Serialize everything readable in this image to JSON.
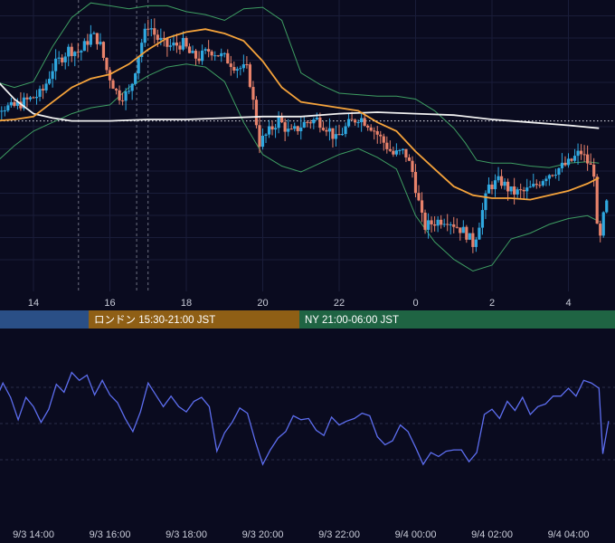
{
  "chart_data": [
    {
      "type": "candlestick",
      "panel": "price",
      "x_unit": "hour",
      "x_ticks": [
        "14",
        "16",
        "18",
        "20",
        "22",
        "0",
        "2",
        "4"
      ],
      "ylim": [
        0,
        100
      ],
      "grid": true,
      "reference_line_y": 58.5,
      "colors": {
        "up": "#2fa8e0",
        "down": "#e8826b",
        "ma_mid": "#f5a33b",
        "ma_long": "#f0f0f0",
        "band": "#3e9e62"
      },
      "ma_long": [
        [
          12.5,
          78
        ],
        [
          13,
          73
        ],
        [
          13.5,
          66
        ],
        [
          14,
          61
        ],
        [
          14.5,
          59.5
        ],
        [
          15,
          58.5
        ],
        [
          16,
          58.5
        ],
        [
          17,
          59
        ],
        [
          18,
          59
        ],
        [
          19,
          59.5
        ],
        [
          20,
          60
        ],
        [
          21,
          60
        ],
        [
          22,
          61
        ],
        [
          23,
          61.5
        ],
        [
          0,
          61
        ],
        [
          1,
          60.5
        ],
        [
          2,
          59
        ],
        [
          3,
          58
        ],
        [
          4,
          57
        ],
        [
          4.8,
          56
        ]
      ],
      "ma_mid": [
        [
          12.5,
          58
        ],
        [
          13.5,
          59
        ],
        [
          14,
          60
        ],
        [
          14.5,
          65
        ],
        [
          15,
          70
        ],
        [
          15.5,
          73
        ],
        [
          16,
          74.5
        ],
        [
          16.5,
          78
        ],
        [
          17,
          83
        ],
        [
          17.5,
          87
        ],
        [
          18,
          89
        ],
        [
          18.5,
          90
        ],
        [
          19,
          88.5
        ],
        [
          19.5,
          86
        ],
        [
          20,
          79
        ],
        [
          20.5,
          70
        ],
        [
          21,
          65
        ],
        [
          21.5,
          64
        ],
        [
          22,
          63
        ],
        [
          22.5,
          62
        ],
        [
          23,
          58
        ],
        [
          23.5,
          55
        ],
        [
          0,
          48
        ],
        [
          0.5,
          42
        ],
        [
          1,
          36
        ],
        [
          1.5,
          33
        ],
        [
          2,
          32
        ],
        [
          2.5,
          32
        ],
        [
          3,
          31.5
        ],
        [
          3.5,
          33
        ],
        [
          4,
          34.5
        ],
        [
          4.5,
          37
        ],
        [
          4.8,
          39
        ]
      ],
      "band_upper": [
        [
          12.5,
          76
        ],
        [
          13,
          72
        ],
        [
          13.5,
          70
        ],
        [
          14,
          72
        ],
        [
          14.5,
          84
        ],
        [
          15,
          94
        ],
        [
          15.5,
          99
        ],
        [
          16,
          98
        ],
        [
          16.5,
          97
        ],
        [
          17,
          98
        ],
        [
          17.5,
          98
        ],
        [
          18,
          96
        ],
        [
          18.5,
          95
        ],
        [
          19,
          93
        ],
        [
          19.5,
          97
        ],
        [
          20,
          97.5
        ],
        [
          20.5,
          93
        ],
        [
          21,
          75
        ],
        [
          21.5,
          71
        ],
        [
          22,
          68
        ],
        [
          23,
          67
        ],
        [
          23.5,
          67
        ],
        [
          0,
          66
        ],
        [
          0.5,
          62
        ],
        [
          1,
          56
        ],
        [
          1.3,
          51
        ],
        [
          1.6,
          45
        ],
        [
          2,
          44
        ],
        [
          2.5,
          44
        ],
        [
          3,
          43
        ],
        [
          3.5,
          42.5
        ],
        [
          4,
          44
        ],
        [
          4.5,
          44.5
        ],
        [
          4.8,
          44
        ]
      ],
      "band_lower": [
        [
          12.5,
          42
        ],
        [
          13,
          44
        ],
        [
          13.5,
          50
        ],
        [
          14,
          55
        ],
        [
          14.5,
          58
        ],
        [
          15,
          61
        ],
        [
          15.5,
          63
        ],
        [
          16,
          64
        ],
        [
          16.5,
          70
        ],
        [
          17,
          74
        ],
        [
          17.5,
          77
        ],
        [
          18,
          78
        ],
        [
          18.5,
          77
        ],
        [
          19,
          72
        ],
        [
          19.5,
          58
        ],
        [
          20,
          47
        ],
        [
          20.5,
          43
        ],
        [
          21,
          41
        ],
        [
          21.5,
          44
        ],
        [
          22,
          47
        ],
        [
          22.5,
          49
        ],
        [
          23,
          46
        ],
        [
          23.5,
          42
        ],
        [
          0,
          26
        ],
        [
          0.5,
          17
        ],
        [
          1,
          11
        ],
        [
          1.5,
          7
        ],
        [
          2,
          9
        ],
        [
          2.5,
          18
        ],
        [
          3,
          20
        ],
        [
          3.5,
          23
        ],
        [
          4,
          25
        ],
        [
          4.5,
          26
        ],
        [
          4.8,
          24
        ]
      ],
      "price_path": [
        [
          12.5,
          65
        ],
        [
          13,
          64
        ],
        [
          13.5,
          63
        ],
        [
          14,
          66
        ],
        [
          14.3,
          68
        ],
        [
          14.6,
          77
        ],
        [
          15,
          83
        ],
        [
          15.3,
          82
        ],
        [
          15.6,
          88
        ],
        [
          15.8,
          86
        ],
        [
          16,
          76
        ],
        [
          16.3,
          67
        ],
        [
          16.6,
          68
        ],
        [
          16.9,
          85
        ],
        [
          17.1,
          92
        ],
        [
          17.3,
          87
        ],
        [
          17.6,
          84
        ],
        [
          18,
          85
        ],
        [
          18.2,
          81
        ],
        [
          18.4,
          80
        ],
        [
          18.7,
          83
        ],
        [
          19.1,
          80
        ],
        [
          19.4,
          77
        ],
        [
          19.7,
          76
        ],
        [
          20,
          51
        ],
        [
          20.2,
          54
        ],
        [
          20.5,
          59
        ],
        [
          20.8,
          54
        ],
        [
          21.2,
          58
        ],
        [
          21.5,
          59
        ],
        [
          21.8,
          56
        ],
        [
          22,
          52
        ],
        [
          22.3,
          57
        ],
        [
          22.6,
          60
        ],
        [
          22.9,
          57
        ],
        [
          23.2,
          52
        ],
        [
          23.5,
          47
        ],
        [
          23.8,
          48
        ],
        [
          0,
          41
        ],
        [
          0.3,
          22
        ],
        [
          0.6,
          24
        ],
        [
          0.9,
          25
        ],
        [
          1.2,
          22
        ],
        [
          1.4,
          20
        ],
        [
          1.6,
          16
        ],
        [
          1.8,
          26
        ],
        [
          2,
          36
        ],
        [
          2.3,
          38
        ],
        [
          2.6,
          34
        ],
        [
          2.9,
          34
        ],
        [
          3.2,
          36
        ],
        [
          3.5,
          40
        ],
        [
          3.8,
          42
        ],
        [
          4.1,
          44
        ],
        [
          4.4,
          48
        ],
        [
          4.6,
          44
        ],
        [
          4.8,
          40
        ],
        [
          4.85,
          12
        ],
        [
          5.05,
          30
        ]
      ]
    },
    {
      "type": "bar",
      "panel": "sessions",
      "series": [
        {
          "name": "",
          "label": "",
          "color": "#2a4f86"
        },
        {
          "name": "ロンドン",
          "label": "ロンドン 15:30-21:00 JST",
          "color": "#8f5f15"
        },
        {
          "name": "NY",
          "label": "NY 21:00-06:00 JST",
          "color": "#1f6443"
        }
      ]
    },
    {
      "type": "line",
      "panel": "oscillator",
      "x_ticks": [
        "9/3 14:00",
        "9/3 16:00",
        "9/3 18:00",
        "9/3 20:00",
        "9/3 22:00",
        "9/4 00:00",
        "9/4 02:00",
        "9/4 04:00"
      ],
      "ylim": [
        0,
        100
      ],
      "grid": true,
      "color": "#5d6ef0",
      "series": [
        {
          "name": "",
          "path": [
            [
              12.5,
              85
            ],
            [
              12.8,
              80
            ],
            [
              13,
              70
            ],
            [
              13.2,
              84
            ],
            [
              13.4,
              73
            ],
            [
              13.6,
              56
            ],
            [
              13.8,
              73
            ],
            [
              14,
              66
            ],
            [
              14.2,
              54
            ],
            [
              14.4,
              64
            ],
            [
              14.6,
              83
            ],
            [
              14.8,
              77
            ],
            [
              15,
              92
            ],
            [
              15.2,
              86
            ],
            [
              15.4,
              90
            ],
            [
              15.6,
              75
            ],
            [
              15.8,
              86
            ],
            [
              16,
              75
            ],
            [
              16.2,
              69
            ],
            [
              16.4,
              57
            ],
            [
              16.6,
              47
            ],
            [
              16.8,
              62
            ],
            [
              17,
              84
            ],
            [
              17.2,
              75
            ],
            [
              17.4,
              66
            ],
            [
              17.6,
              74
            ],
            [
              17.8,
              66
            ],
            [
              18,
              62
            ],
            [
              18.2,
              70
            ],
            [
              18.4,
              73
            ],
            [
              18.6,
              66
            ],
            [
              18.8,
              32
            ],
            [
              19,
              46
            ],
            [
              19.2,
              54
            ],
            [
              19.4,
              65
            ],
            [
              19.6,
              61
            ],
            [
              19.8,
              40
            ],
            [
              20,
              22
            ],
            [
              20.2,
              33
            ],
            [
              20.4,
              42
            ],
            [
              20.6,
              47
            ],
            [
              20.8,
              59
            ],
            [
              21,
              56
            ],
            [
              21.2,
              57
            ],
            [
              21.4,
              48
            ],
            [
              21.6,
              44
            ],
            [
              21.8,
              58
            ],
            [
              22,
              52
            ],
            [
              22.2,
              55
            ],
            [
              22.4,
              57
            ],
            [
              22.6,
              61
            ],
            [
              22.8,
              59
            ],
            [
              23,
              43
            ],
            [
              23.2,
              37
            ],
            [
              23.4,
              40
            ],
            [
              23.6,
              52
            ],
            [
              23.8,
              47
            ],
            [
              0,
              35
            ],
            [
              0.2,
              22
            ],
            [
              0.4,
              31
            ],
            [
              0.6,
              28
            ],
            [
              0.8,
              32
            ],
            [
              1,
              33
            ],
            [
              1.2,
              33
            ],
            [
              1.4,
              24
            ],
            [
              1.6,
              31
            ],
            [
              1.8,
              60
            ],
            [
              2,
              64
            ],
            [
              2.2,
              57
            ],
            [
              2.4,
              70
            ],
            [
              2.6,
              63
            ],
            [
              2.8,
              73
            ],
            [
              3,
              60
            ],
            [
              3.2,
              66
            ],
            [
              3.4,
              68
            ],
            [
              3.6,
              74
            ],
            [
              3.8,
              74
            ],
            [
              4,
              80
            ],
            [
              4.2,
              74
            ],
            [
              4.4,
              86
            ],
            [
              4.6,
              84
            ],
            [
              4.8,
              80
            ],
            [
              4.9,
              30
            ],
            [
              5.05,
              55
            ]
          ]
        }
      ]
    }
  ]
}
